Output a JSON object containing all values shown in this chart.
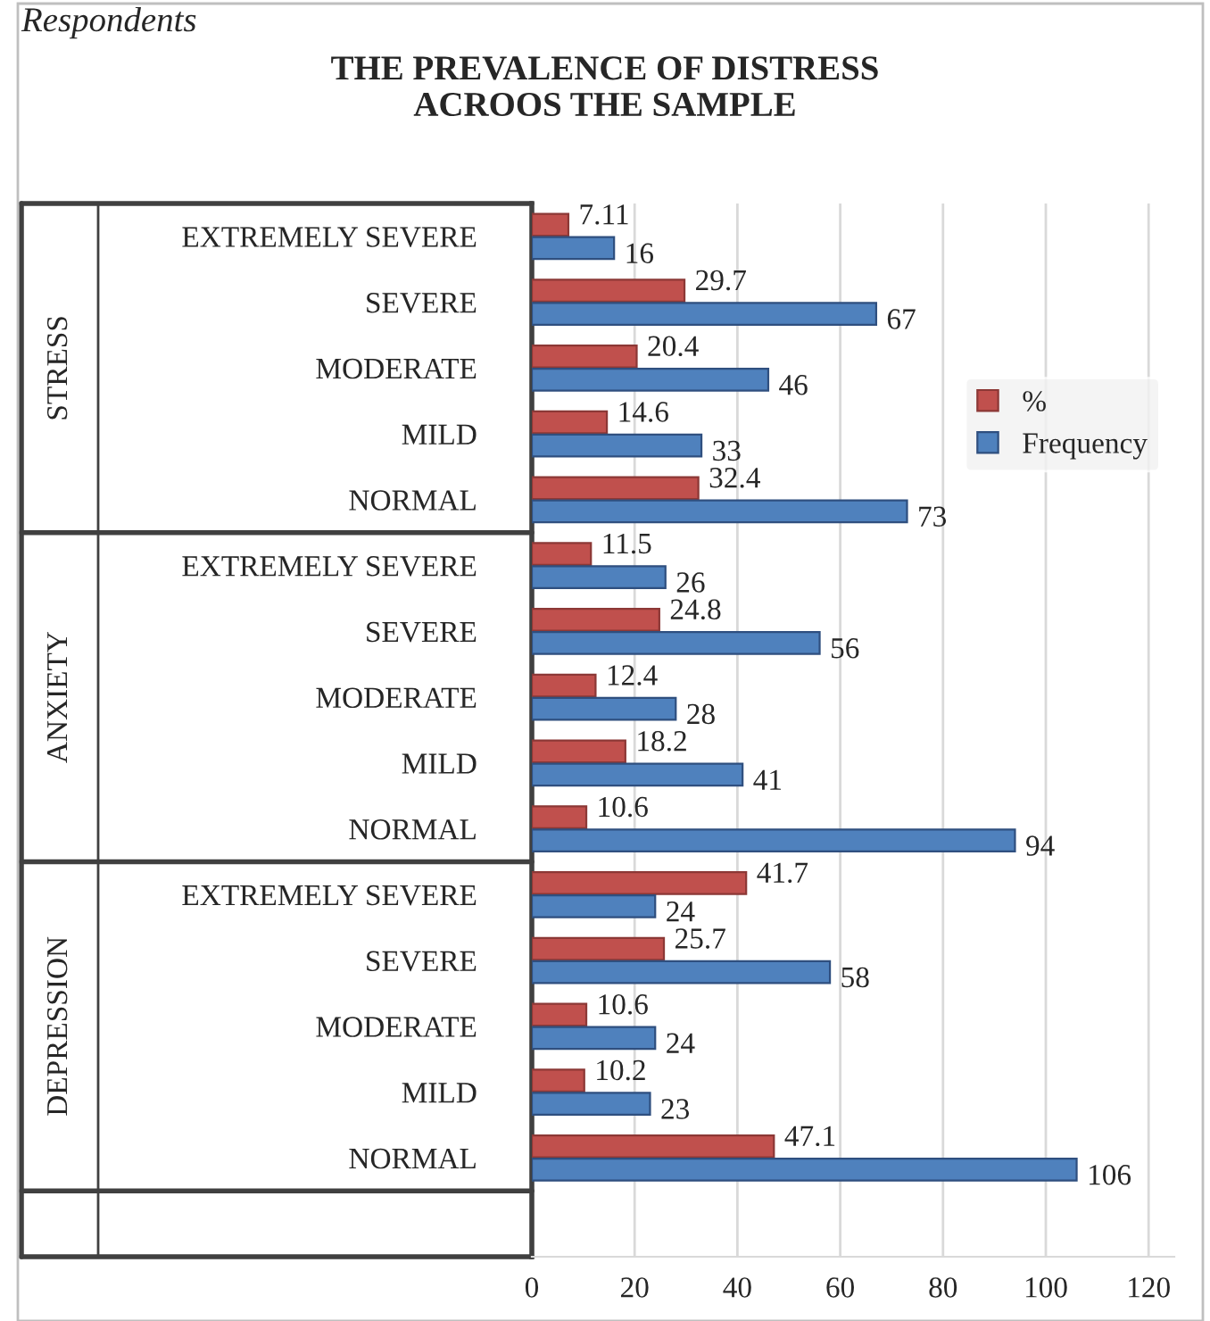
{
  "chart_data": {
    "type": "bar",
    "orientation": "horizontal",
    "title": "THE PREVALENCE OF DISTRESS\nACROOS THE SAMPLE",
    "categories": [
      "EXTREMELY SEVERE",
      "SEVERE",
      "MODERATE",
      "MILD",
      "NORMAL",
      "EXTREMELY SEVERE",
      "SEVERE",
      "MODERATE",
      "MILD",
      "NORMAL",
      "EXTREMELY SEVERE",
      "SEVERE",
      "MODERATE",
      "MILD",
      "NORMAL",
      null
    ],
    "series": [
      {
        "name": "%",
        "color": "#c0504d",
        "values": [
          7.11,
          29.7,
          20.4,
          14.6,
          32.4,
          11.5,
          24.8,
          12.4,
          18.2,
          10.6,
          41.7,
          25.7,
          10.6,
          10.2,
          47.1,
          null
        ]
      },
      {
        "name": "Frequency",
        "color": "#4f81bd",
        "values": [
          16,
          67,
          46,
          33,
          73,
          26,
          56,
          28,
          41,
          94,
          24,
          58,
          24,
          23,
          106,
          null
        ]
      }
    ],
    "annotations": [
      "Respondents",
      "STRESS",
      "ANXIETY",
      "DEPRESSION"
    ],
    "xlim": [
      0,
      125
    ],
    "xticks": [
      0,
      20,
      40,
      60,
      80,
      100,
      120
    ],
    "grid": "x",
    "legend": "right",
    "data_labels": true
  }
}
